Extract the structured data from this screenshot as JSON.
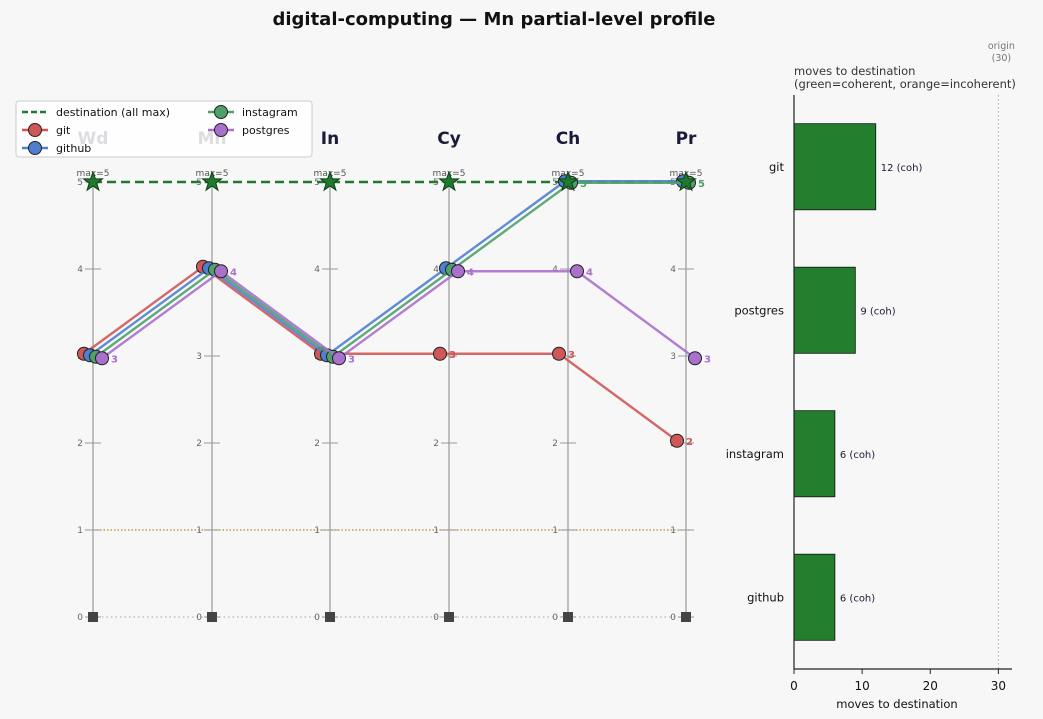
{
  "chart_data": [
    {
      "type": "line",
      "title": "digital-computing — Mn partial-level profile",
      "axes": [
        "Wd",
        "Mn",
        "In",
        "Cy",
        "Ch",
        "Pr"
      ],
      "max_label": "max=5",
      "ylim": [
        0,
        5
      ],
      "yticks": [
        "0",
        "1",
        "2",
        "3",
        "4",
        "5"
      ],
      "destination": {
        "name": "destination (all max)",
        "values": [
          5,
          5,
          5,
          5,
          5,
          5
        ],
        "color": "#1f7a2e"
      },
      "series": [
        {
          "name": "git",
          "values": [
            3,
            4,
            3,
            3,
            3,
            2
          ],
          "color": "#cf5757"
        },
        {
          "name": "github",
          "values": [
            3,
            4,
            3,
            4,
            5,
            5
          ],
          "color": "#4f7fd1"
        },
        {
          "name": "instagram",
          "values": [
            3,
            4,
            3,
            4,
            5,
            5
          ],
          "color": "#4fa06a"
        },
        {
          "name": "postgres",
          "values": [
            3,
            4,
            3,
            4,
            4,
            3
          ],
          "color": "#a970cc"
        }
      ],
      "reference_level": 1,
      "floor_level": 0
    },
    {
      "type": "bar",
      "orientation": "horizontal",
      "title": "moves to destination\n(green=coherent, orange=incoherent)",
      "categories": [
        "git",
        "postgres",
        "instagram",
        "github"
      ],
      "values": [
        12,
        9,
        6,
        6
      ],
      "value_labels": [
        "12  (coh)",
        "9  (coh)",
        "6  (coh)",
        "6  (coh)"
      ],
      "xlabel": "moves to destination",
      "xlim": [
        0,
        32
      ],
      "xticks": [
        "0",
        "10",
        "20",
        "30"
      ],
      "reference_line": {
        "value": 30,
        "label": "origin\n(30)"
      },
      "colors": {
        "coherent": "#237f2d",
        "incoherent": "#e08a2c"
      }
    }
  ]
}
